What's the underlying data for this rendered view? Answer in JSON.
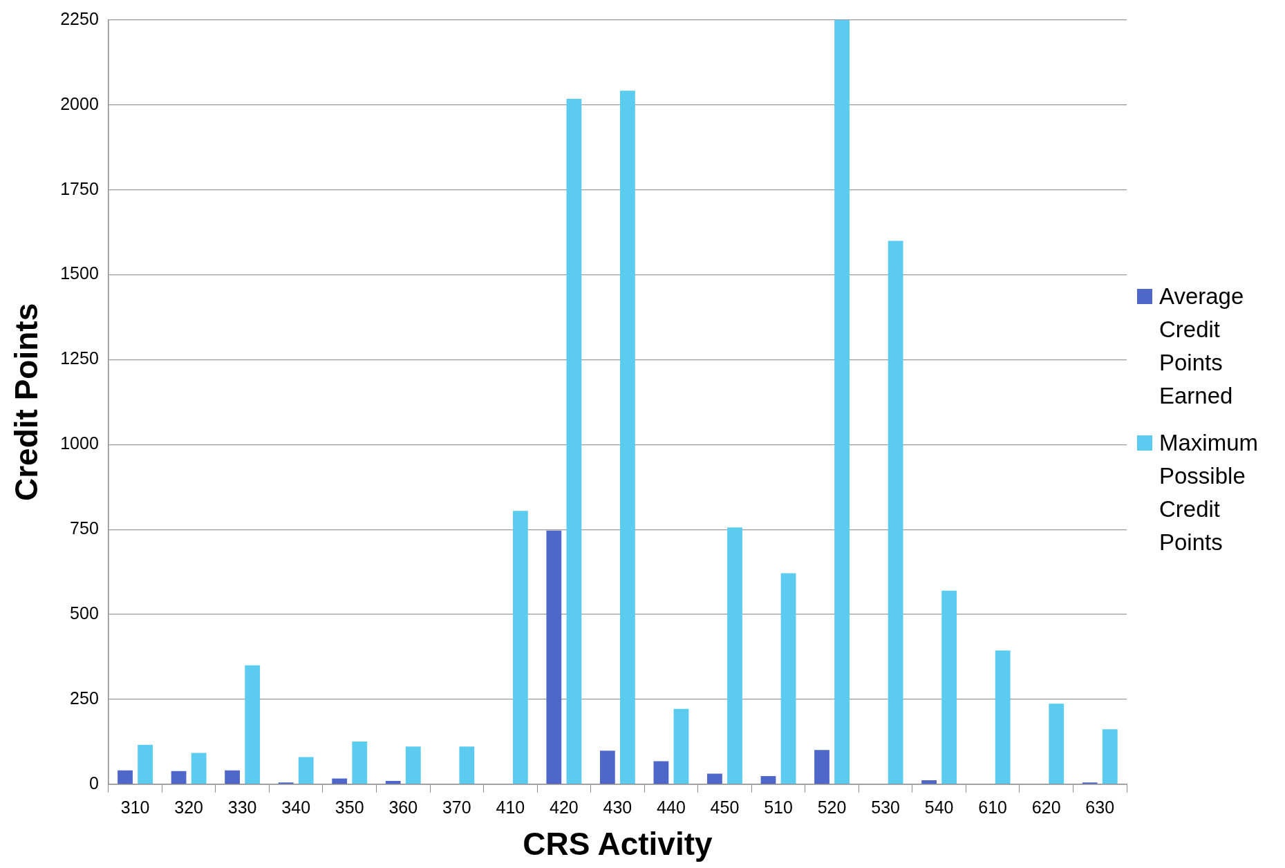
{
  "chart_data": {
    "type": "bar",
    "xlabel": "CRS Activity",
    "ylabel": "Credit Points",
    "categories": [
      "310",
      "320",
      "330",
      "340",
      "350",
      "360",
      "370",
      "410",
      "420",
      "430",
      "440",
      "450",
      "510",
      "520",
      "530",
      "540",
      "610",
      "620",
      "630"
    ],
    "series": [
      {
        "name": "Average Credit Points Earned",
        "color": "#4f67c9",
        "values": [
          41,
          39,
          41,
          5,
          17,
          10,
          0,
          0,
          747,
          99,
          68,
          31,
          24,
          101,
          0,
          12,
          0,
          0,
          5
        ]
      },
      {
        "name": "Maximum Possible Credit Points",
        "color": "#5bcbf0",
        "values": [
          116,
          92,
          350,
          80,
          126,
          111,
          111,
          805,
          2018,
          2042,
          222,
          756,
          621,
          2250,
          1600,
          570,
          394,
          237,
          162
        ]
      }
    ],
    "ylim": [
      0,
      2250
    ],
    "yticks": [
      0,
      250,
      500,
      750,
      1000,
      1250,
      1500,
      1750,
      2000,
      2250
    ],
    "grid": "y",
    "legend": "right"
  }
}
